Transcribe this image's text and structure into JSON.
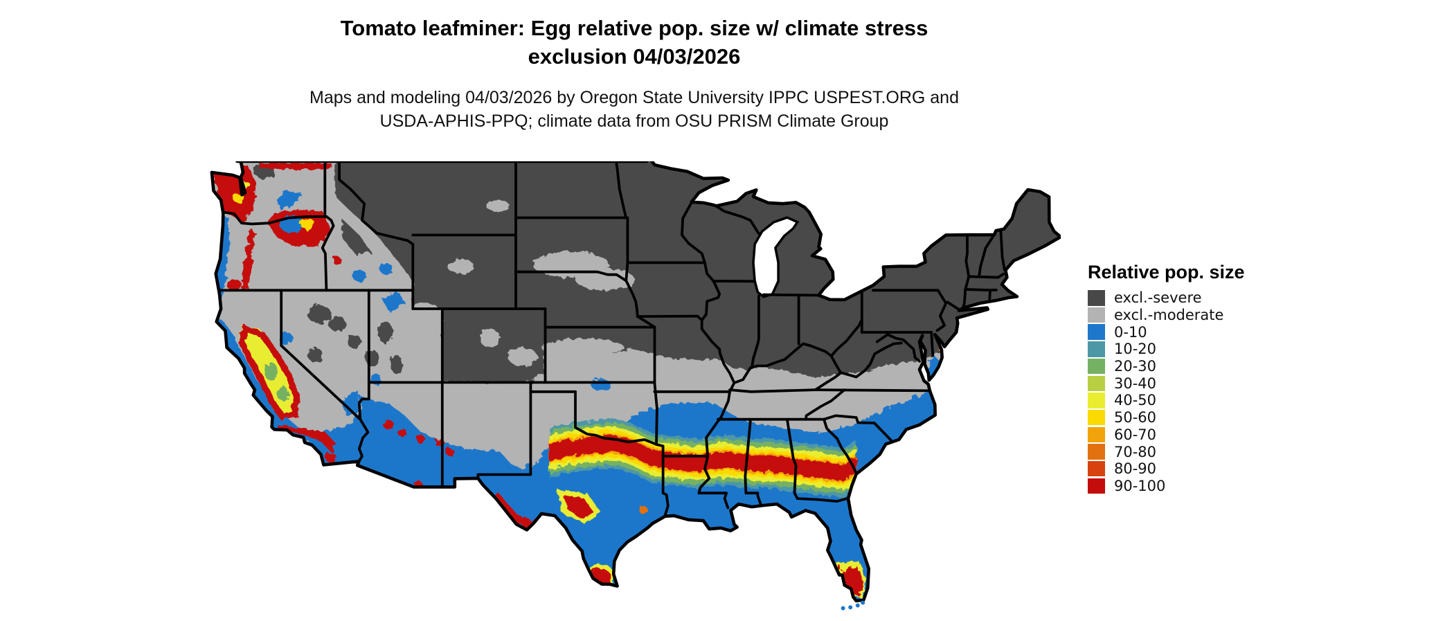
{
  "header": {
    "title_line1": "Tomato leafminer: Egg relative pop. size w/ climate stress",
    "title_line2": "exclusion 04/03/2026",
    "subtitle_line1": "Maps and modeling 04/03/2026 by Oregon State University IPPC USPEST.ORG and",
    "subtitle_line2": "USDA-APHIS-PPQ; climate data from OSU PRISM Climate Group"
  },
  "legend": {
    "title": "Relative pop. size",
    "items": [
      {
        "label": "excl.-severe",
        "color_key": "excl_severe"
      },
      {
        "label": "excl.-moderate",
        "color_key": "excl_moderate"
      },
      {
        "label": "0-10",
        "color_key": "c0_10"
      },
      {
        "label": "10-20",
        "color_key": "c10_20"
      },
      {
        "label": "20-30",
        "color_key": "c20_30"
      },
      {
        "label": "30-40",
        "color_key": "c30_40"
      },
      {
        "label": "40-50",
        "color_key": "c40_50"
      },
      {
        "label": "50-60",
        "color_key": "c50_60"
      },
      {
        "label": "60-70",
        "color_key": "c60_70"
      },
      {
        "label": "70-80",
        "color_key": "c70_80"
      },
      {
        "label": "80-90",
        "color_key": "c80_90"
      },
      {
        "label": "90-100",
        "color_key": "c90_100"
      }
    ]
  },
  "colors": {
    "excl_severe": "#484848",
    "excl_moderate": "#B3B3B3",
    "c0_10": "#1E77CB",
    "c10_20": "#4D97A6",
    "c20_30": "#76B163",
    "c30_40": "#B8CF42",
    "c40_50": "#E9ED30",
    "c50_60": "#FBD903",
    "c60_70": "#F2A30B",
    "c70_80": "#E27110",
    "c80_90": "#D8420E",
    "c90_100": "#C50C0C",
    "outline": "#000000",
    "water": "#FFFFFF"
  }
}
